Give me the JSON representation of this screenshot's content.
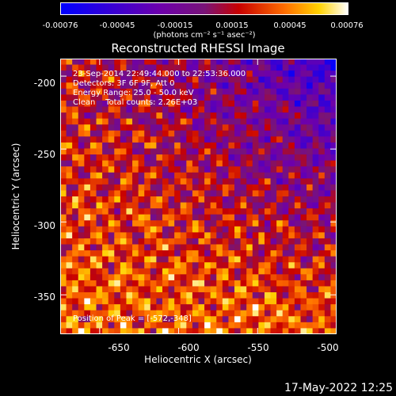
{
  "colorbar": {
    "ticks": [
      "-0.00076",
      "-0.00045",
      "-0.00015",
      "0.00015",
      "0.00045",
      "0.00076"
    ],
    "unit_label": "(photons cm⁻² s⁻¹ asec⁻²)",
    "range": [
      -0.00076,
      0.00076
    ]
  },
  "chart_data": {
    "type": "heatmap",
    "title": "Reconstructed RHESSI Image",
    "xlabel": "Heliocentric X (arcsec)",
    "ylabel": "Heliocentric Y (arcsec)",
    "xlim": [
      -675,
      -500
    ],
    "ylim": [
      -377,
      -188
    ],
    "x_ticks": [
      "-650",
      "-600",
      "-550",
      "-500"
    ],
    "y_ticks": [
      "-200",
      "-250",
      "-300",
      "-350"
    ],
    "annotations": {
      "time": "23-Sep-2014 22:49:44.000 to 22:53:36.000",
      "detectors": "Detectors: 3F 6F 9F, Att 0",
      "energy": "Energy Range: 25.0 - 50.0 keV",
      "clean": "Clean    Total counts: 2.26E+03",
      "peak": "Position of Peak = [-572,-348]"
    },
    "peak_position": [
      -572,
      -348
    ]
  },
  "timestamp": "17-May-2022 12:25"
}
